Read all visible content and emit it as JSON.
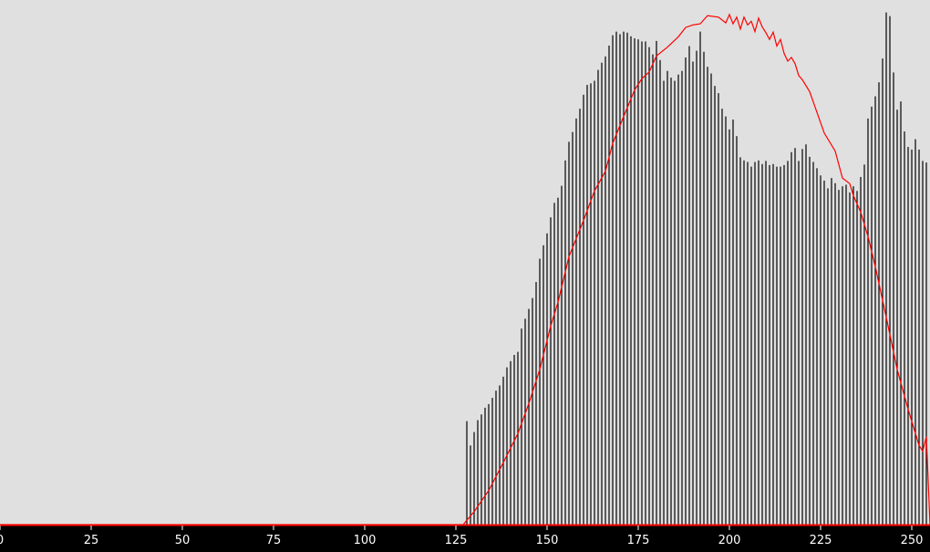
{
  "chart_data": {
    "type": "bar",
    "title": "",
    "xlabel": "",
    "ylabel": "",
    "xlim": [
      0,
      255
    ],
    "ylim": [
      0,
      100
    ],
    "grid": false,
    "xticks": [
      "0",
      "25",
      "50",
      "75",
      "100",
      "125",
      "150",
      "175",
      "200",
      "225",
      "250"
    ],
    "colors": {
      "plot_background": "#e0e0e0",
      "axis_background": "#000000",
      "bars": "#000000",
      "curve": "#ff0000",
      "tick_labels": "#ffffff"
    },
    "series": [
      {
        "kind": "histogram-bars",
        "x_start": 128,
        "values": [
          20.0,
          15.3,
          17.9,
          20.2,
          21.3,
          22.6,
          23.3,
          24.5,
          25.9,
          26.9,
          28.6,
          30.4,
          31.6,
          32.8,
          33.4,
          37.9,
          39.8,
          41.7,
          43.8,
          46.9,
          51.4,
          54.0,
          56.3,
          59.4,
          62.2,
          63.2,
          65.5,
          70.4,
          74.0,
          75.9,
          78.5,
          80.4,
          83.1,
          85.0,
          85.3,
          85.8,
          87.9,
          89.3,
          90.5,
          92.6,
          94.6,
          95.3,
          94.8,
          95.3,
          95.1,
          94.4,
          94.0,
          93.8,
          93.4,
          93.4,
          92.3,
          90.9,
          93.5,
          89.8,
          85.8,
          87.7,
          86.4,
          85.8,
          87.0,
          87.7,
          90.3,
          92.5,
          89.5,
          91.6,
          95.3,
          91.4,
          88.5,
          87.2,
          84.8,
          83.4,
          80.4,
          78.9,
          76.4,
          78.3,
          75.1,
          71.0,
          70.4,
          70.1,
          69.2,
          70.1,
          70.4,
          69.7,
          70.3,
          69.5,
          69.7,
          69.2,
          69.2,
          69.5,
          70.3,
          72.0,
          72.8,
          70.3,
          72.6,
          73.5,
          71.1,
          70.1,
          68.9,
          67.5,
          66.5,
          65.0,
          67.0,
          66.0,
          64.7,
          65.4,
          65.7,
          64.2,
          65.4,
          64.5,
          67.2,
          69.6,
          78.5,
          80.8,
          82.8,
          85.5,
          90.1,
          99.0,
          98.3,
          87.4,
          80.2,
          81.8,
          76.0,
          73.0,
          72.5,
          74.5,
          72.5,
          70.3,
          70.0
        ]
      },
      {
        "kind": "curve",
        "points": [
          [
            0,
            0.0
          ],
          [
            127,
            0.0
          ],
          [
            130,
            2.5
          ],
          [
            134,
            6.6
          ],
          [
            138,
            12.0
          ],
          [
            142,
            17.6
          ],
          [
            145,
            23.4
          ],
          [
            148,
            30.0
          ],
          [
            151,
            38.4
          ],
          [
            153,
            43.0
          ],
          [
            156,
            51.8
          ],
          [
            160,
            58.8
          ],
          [
            163,
            64.5
          ],
          [
            166,
            68.3
          ],
          [
            168,
            73.7
          ],
          [
            171,
            78.9
          ],
          [
            174,
            84.0
          ],
          [
            176,
            86.2
          ],
          [
            178,
            87.5
          ],
          [
            180,
            90.6
          ],
          [
            183,
            92.3
          ],
          [
            186,
            94.3
          ],
          [
            188,
            96.1
          ],
          [
            190,
            96.6
          ],
          [
            192,
            96.8
          ],
          [
            194,
            98.4
          ],
          [
            197,
            98.1
          ],
          [
            199,
            97.0
          ],
          [
            200,
            98.6
          ],
          [
            201,
            96.8
          ],
          [
            202,
            98.1
          ],
          [
            203,
            95.8
          ],
          [
            204,
            98.1
          ],
          [
            205,
            96.6
          ],
          [
            206,
            97.3
          ],
          [
            207,
            95.3
          ],
          [
            208,
            97.9
          ],
          [
            209,
            96.2
          ],
          [
            210,
            95.1
          ],
          [
            211,
            93.8
          ],
          [
            212,
            95.2
          ],
          [
            213,
            92.5
          ],
          [
            214,
            93.8
          ],
          [
            215,
            91.1
          ],
          [
            216,
            89.6
          ],
          [
            217,
            90.3
          ],
          [
            218,
            89.1
          ],
          [
            219,
            86.8
          ],
          [
            220,
            86.0
          ],
          [
            222,
            83.7
          ],
          [
            226,
            75.7
          ],
          [
            229,
            72.2
          ],
          [
            231,
            67.0
          ],
          [
            233,
            65.9
          ],
          [
            234,
            63.6
          ],
          [
            236,
            60.4
          ],
          [
            238,
            55.7
          ],
          [
            240,
            49.9
          ],
          [
            243,
            40.1
          ],
          [
            246,
            30.0
          ],
          [
            249,
            22.3
          ],
          [
            252,
            15.3
          ],
          [
            253,
            14.2
          ],
          [
            254,
            17.0
          ],
          [
            255,
            0.0
          ]
        ]
      }
    ]
  }
}
